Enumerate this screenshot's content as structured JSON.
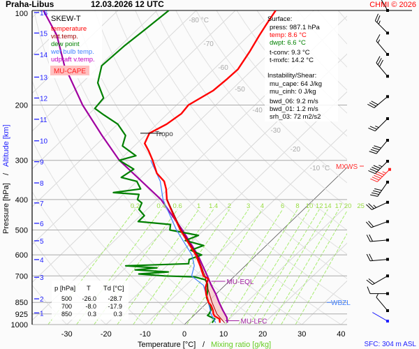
{
  "header": {
    "station": "Praha-Libus",
    "datetime": "12.03.2026 12 UTC",
    "copyright": "CHMI © 2026"
  },
  "legend": {
    "title": "SKEW-T",
    "items": [
      {
        "label": "temperature",
        "color": "#ff0000"
      },
      {
        "label": "virt.temp.",
        "color": "#a00000"
      },
      {
        "label": "dew point",
        "color": "#008000"
      },
      {
        "label": "wet bulb temp.",
        "color": "#4080ff"
      },
      {
        "label": "udpraft v.temp.",
        "color": "#c000c0"
      }
    ],
    "cape_label": "MU-CAPE"
  },
  "surface": {
    "title": "Surface:",
    "press": "press: 987.1 hPa",
    "temp": "temp: 8.6 °C",
    "dwpt": "dwpt: 6.6 °C",
    "tconv": "t-conv: 9.3 °C",
    "tmxfc": "t-mxfc: 14.2 °C"
  },
  "instability": {
    "title": "Instability/Shear:",
    "mu_cape": "mu_cape: 64 J/kg",
    "mu_cinh": "mu_cinh: 0 J/kg",
    "bwd_06": "bwd_06: 9.2 m/s",
    "bwd_01": "bwd_01: 1.2 m/s",
    "srh_03": "srh_03: 72 m2/s2"
  },
  "level_table": {
    "headers": [
      "p [hPa]",
      "T",
      "Td [°C]"
    ],
    "rows": [
      [
        "500",
        "-26.0",
        "-28.7"
      ],
      [
        "700",
        "-8.0",
        "-17.9"
      ],
      [
        "850",
        "0.3",
        "0.3"
      ]
    ]
  },
  "footer": {
    "sfc": "SFC: 304 m ASL"
  },
  "chart_data": {
    "type": "skew-t",
    "title": "Praha-Libus 12.03.2026 12 UTC",
    "xlabel": "Temperature [°C]",
    "xlabel2": "Mixing ratio [g/kg]",
    "ylabel": "Pressure [hPa]",
    "ylabel2": "Altitude [km]",
    "pressure_range": [
      100,
      1000
    ],
    "pressure_ticks": [
      "100",
      "200",
      "300",
      "400",
      "500",
      "600",
      "700",
      "850",
      "925",
      "1000"
    ],
    "temp_ticks": [
      "-30",
      "-20",
      "-10",
      "0",
      "10",
      "20",
      "30",
      "40"
    ],
    "isotherm_labels": [
      {
        "t": -80,
        "label": "-80 °C"
      },
      {
        "t": -70,
        "label": "-70"
      },
      {
        "t": -60,
        "label": "-60"
      },
      {
        "t": -50,
        "label": "-50"
      },
      {
        "t": -40,
        "label": "-40"
      },
      {
        "t": -30,
        "label": "-30"
      },
      {
        "t": -20,
        "label": "-20"
      },
      {
        "t": -10,
        "label": "-10 °C"
      }
    ],
    "mixing_ratios": [
      "0.2",
      "0.4",
      "0.6",
      "1",
      "1.4",
      "2",
      "3",
      "4",
      "6",
      "8",
      "10",
      "12",
      "14",
      "17",
      "20",
      "25"
    ],
    "altitude_ticks": [
      {
        "km": "1",
        "p": 918
      },
      {
        "km": "2",
        "p": 828
      },
      {
        "km": "3",
        "p": 707
      },
      {
        "km": "4",
        "p": 621
      },
      {
        "km": "5",
        "p": 541
      },
      {
        "km": "6",
        "p": 476
      },
      {
        "km": "7",
        "p": 410
      },
      {
        "km": "8",
        "p": 354
      },
      {
        "km": "9",
        "p": 303
      },
      {
        "km": "10",
        "p": 260
      },
      {
        "km": "11",
        "p": 222
      },
      {
        "km": "12",
        "p": 190
      },
      {
        "km": "13",
        "p": 163
      },
      {
        "km": "14",
        "p": 138
      },
      {
        "km": "15",
        "p": 118
      },
      {
        "km": "16",
        "p": 101.5
      }
    ],
    "temperature": [
      [
        987,
        8.6
      ],
      [
        960,
        7.5
      ],
      [
        940,
        5.5
      ],
      [
        925,
        4.6
      ],
      [
        900,
        3.5
      ],
      [
        870,
        1.8
      ],
      [
        850,
        0.3
      ],
      [
        800,
        -2.5
      ],
      [
        760,
        -4.5
      ],
      [
        730,
        -5.5
      ],
      [
        715,
        -6
      ],
      [
        700,
        -8
      ],
      [
        650,
        -11.5
      ],
      [
        600,
        -15.5
      ],
      [
        550,
        -20.5
      ],
      [
        500,
        -26
      ],
      [
        450,
        -31.5
      ],
      [
        400,
        -37.5
      ],
      [
        370,
        -40.5
      ],
      [
        350,
        -43
      ],
      [
        330,
        -47
      ],
      [
        300,
        -51.5
      ],
      [
        280,
        -55
      ],
      [
        265,
        -58
      ],
      [
        246,
        -59.5
      ],
      [
        230,
        -57.5
      ],
      [
        213,
        -56.5
      ],
      [
        200,
        -57
      ],
      [
        180,
        -54.5
      ],
      [
        165,
        -54
      ],
      [
        154,
        -53.8
      ],
      [
        135,
        -55.5
      ],
      [
        120,
        -57.3
      ],
      [
        110,
        -58.5
      ],
      [
        100,
        -59.7
      ]
    ],
    "virtual_temperature": [
      [
        987,
        9.8
      ],
      [
        925,
        5.5
      ],
      [
        850,
        1.2
      ],
      [
        760,
        -4
      ],
      [
        700,
        -7.6
      ],
      [
        600,
        -15.2
      ],
      [
        500,
        -25.8
      ],
      [
        400,
        -37.4
      ]
    ],
    "dewpoint": [
      [
        987,
        6.6
      ],
      [
        960,
        6.3
      ],
      [
        935,
        3.5
      ],
      [
        925,
        3.5
      ],
      [
        900,
        3
      ],
      [
        850,
        0.3
      ],
      [
        820,
        -1.5
      ],
      [
        780,
        -3
      ],
      [
        740,
        -5
      ],
      [
        720,
        -6.5
      ],
      [
        705,
        -10
      ],
      [
        700,
        -17.9
      ],
      [
        690,
        -25
      ],
      [
        680,
        -18
      ],
      [
        670,
        -27
      ],
      [
        660,
        -22
      ],
      [
        650,
        -30.5
      ],
      [
        640,
        -15
      ],
      [
        620,
        -16
      ],
      [
        600,
        -14
      ],
      [
        580,
        -18
      ],
      [
        560,
        -16
      ],
      [
        540,
        -22
      ],
      [
        520,
        -20
      ],
      [
        500,
        -28.7
      ],
      [
        480,
        -30
      ],
      [
        470,
        -39
      ],
      [
        450,
        -39
      ],
      [
        430,
        -42
      ],
      [
        410,
        -43
      ],
      [
        400,
        -45
      ],
      [
        385,
        -46
      ],
      [
        380,
        -53
      ],
      [
        370,
        -47
      ],
      [
        350,
        -50
      ],
      [
        340,
        -55
      ],
      [
        320,
        -54
      ],
      [
        300,
        -60
      ],
      [
        290,
        -57
      ],
      [
        270,
        -63
      ],
      [
        250,
        -65
      ],
      [
        230,
        -70
      ],
      [
        215,
        -76
      ],
      [
        205,
        -80
      ],
      [
        190,
        -80.5
      ],
      [
        170,
        -86
      ],
      [
        150,
        -89.5
      ],
      [
        130,
        -89
      ],
      [
        115,
        -88
      ],
      [
        100,
        -87
      ]
    ],
    "wet_bulb": [
      [
        987,
        7.5
      ],
      [
        925,
        4
      ],
      [
        850,
        0.3
      ],
      [
        750,
        -5.5
      ],
      [
        700,
        -11
      ],
      [
        650,
        -13
      ],
      [
        600,
        -16.5
      ],
      [
        500,
        -27
      ],
      [
        400,
        -38.5
      ],
      [
        350,
        -44
      ],
      [
        300,
        -52
      ]
    ],
    "parcel": [
      [
        987,
        10.5
      ],
      [
        950,
        9
      ],
      [
        900,
        6
      ],
      [
        850,
        3
      ],
      [
        800,
        0
      ],
      [
        750,
        -3.5
      ],
      [
        700,
        -7
      ],
      [
        600,
        -15
      ],
      [
        500,
        -25.5
      ],
      [
        400,
        -39
      ],
      [
        300,
        -60
      ],
      [
        250,
        -71
      ],
      [
        200,
        -84
      ],
      [
        150,
        -99
      ],
      [
        120,
        -109
      ],
      [
        100,
        -119
      ]
    ],
    "levels": [
      {
        "label": "MU-LFC",
        "p": 972,
        "color": "#a020a0"
      },
      {
        "label": "MU-EQL",
        "p": 728,
        "color": "#a020a0"
      },
      {
        "label": "WBZL",
        "p": 850,
        "color": "#4080ff"
      },
      {
        "label": "MXWS",
        "p": 313,
        "color": "#ff3030"
      },
      {
        "label": "Tropo",
        "p": 246,
        "color": "#000000"
      }
    ],
    "winds": [
      {
        "p": 100,
        "dir": 330,
        "kt": 20
      },
      {
        "p": 118,
        "dir": 315,
        "kt": 25
      },
      {
        "p": 138,
        "dir": 320,
        "kt": 15
      },
      {
        "p": 162,
        "dir": 320,
        "kt": 30
      },
      {
        "p": 188,
        "dir": 230,
        "kt": 30
      },
      {
        "p": 221,
        "dir": 225,
        "kt": 25
      },
      {
        "p": 259,
        "dir": 220,
        "kt": 40
      },
      {
        "p": 302,
        "dir": 225,
        "kt": 45
      },
      {
        "p": 311,
        "dir": 225,
        "kt": 55,
        "max": true
      },
      {
        "p": 352,
        "dir": 215,
        "kt": 40
      },
      {
        "p": 408,
        "dir": 245,
        "kt": 25
      },
      {
        "p": 470,
        "dir": 250,
        "kt": 20
      },
      {
        "p": 538,
        "dir": 265,
        "kt": 20
      },
      {
        "p": 620,
        "dir": 265,
        "kt": 20
      },
      {
        "p": 700,
        "dir": 240,
        "kt": 20
      },
      {
        "p": 797,
        "dir": 270,
        "kt": 10
      },
      {
        "p": 903,
        "dir": 320,
        "kt": 5
      },
      {
        "p": 975,
        "dir": 300,
        "kt": 0,
        "surface": true
      }
    ]
  }
}
